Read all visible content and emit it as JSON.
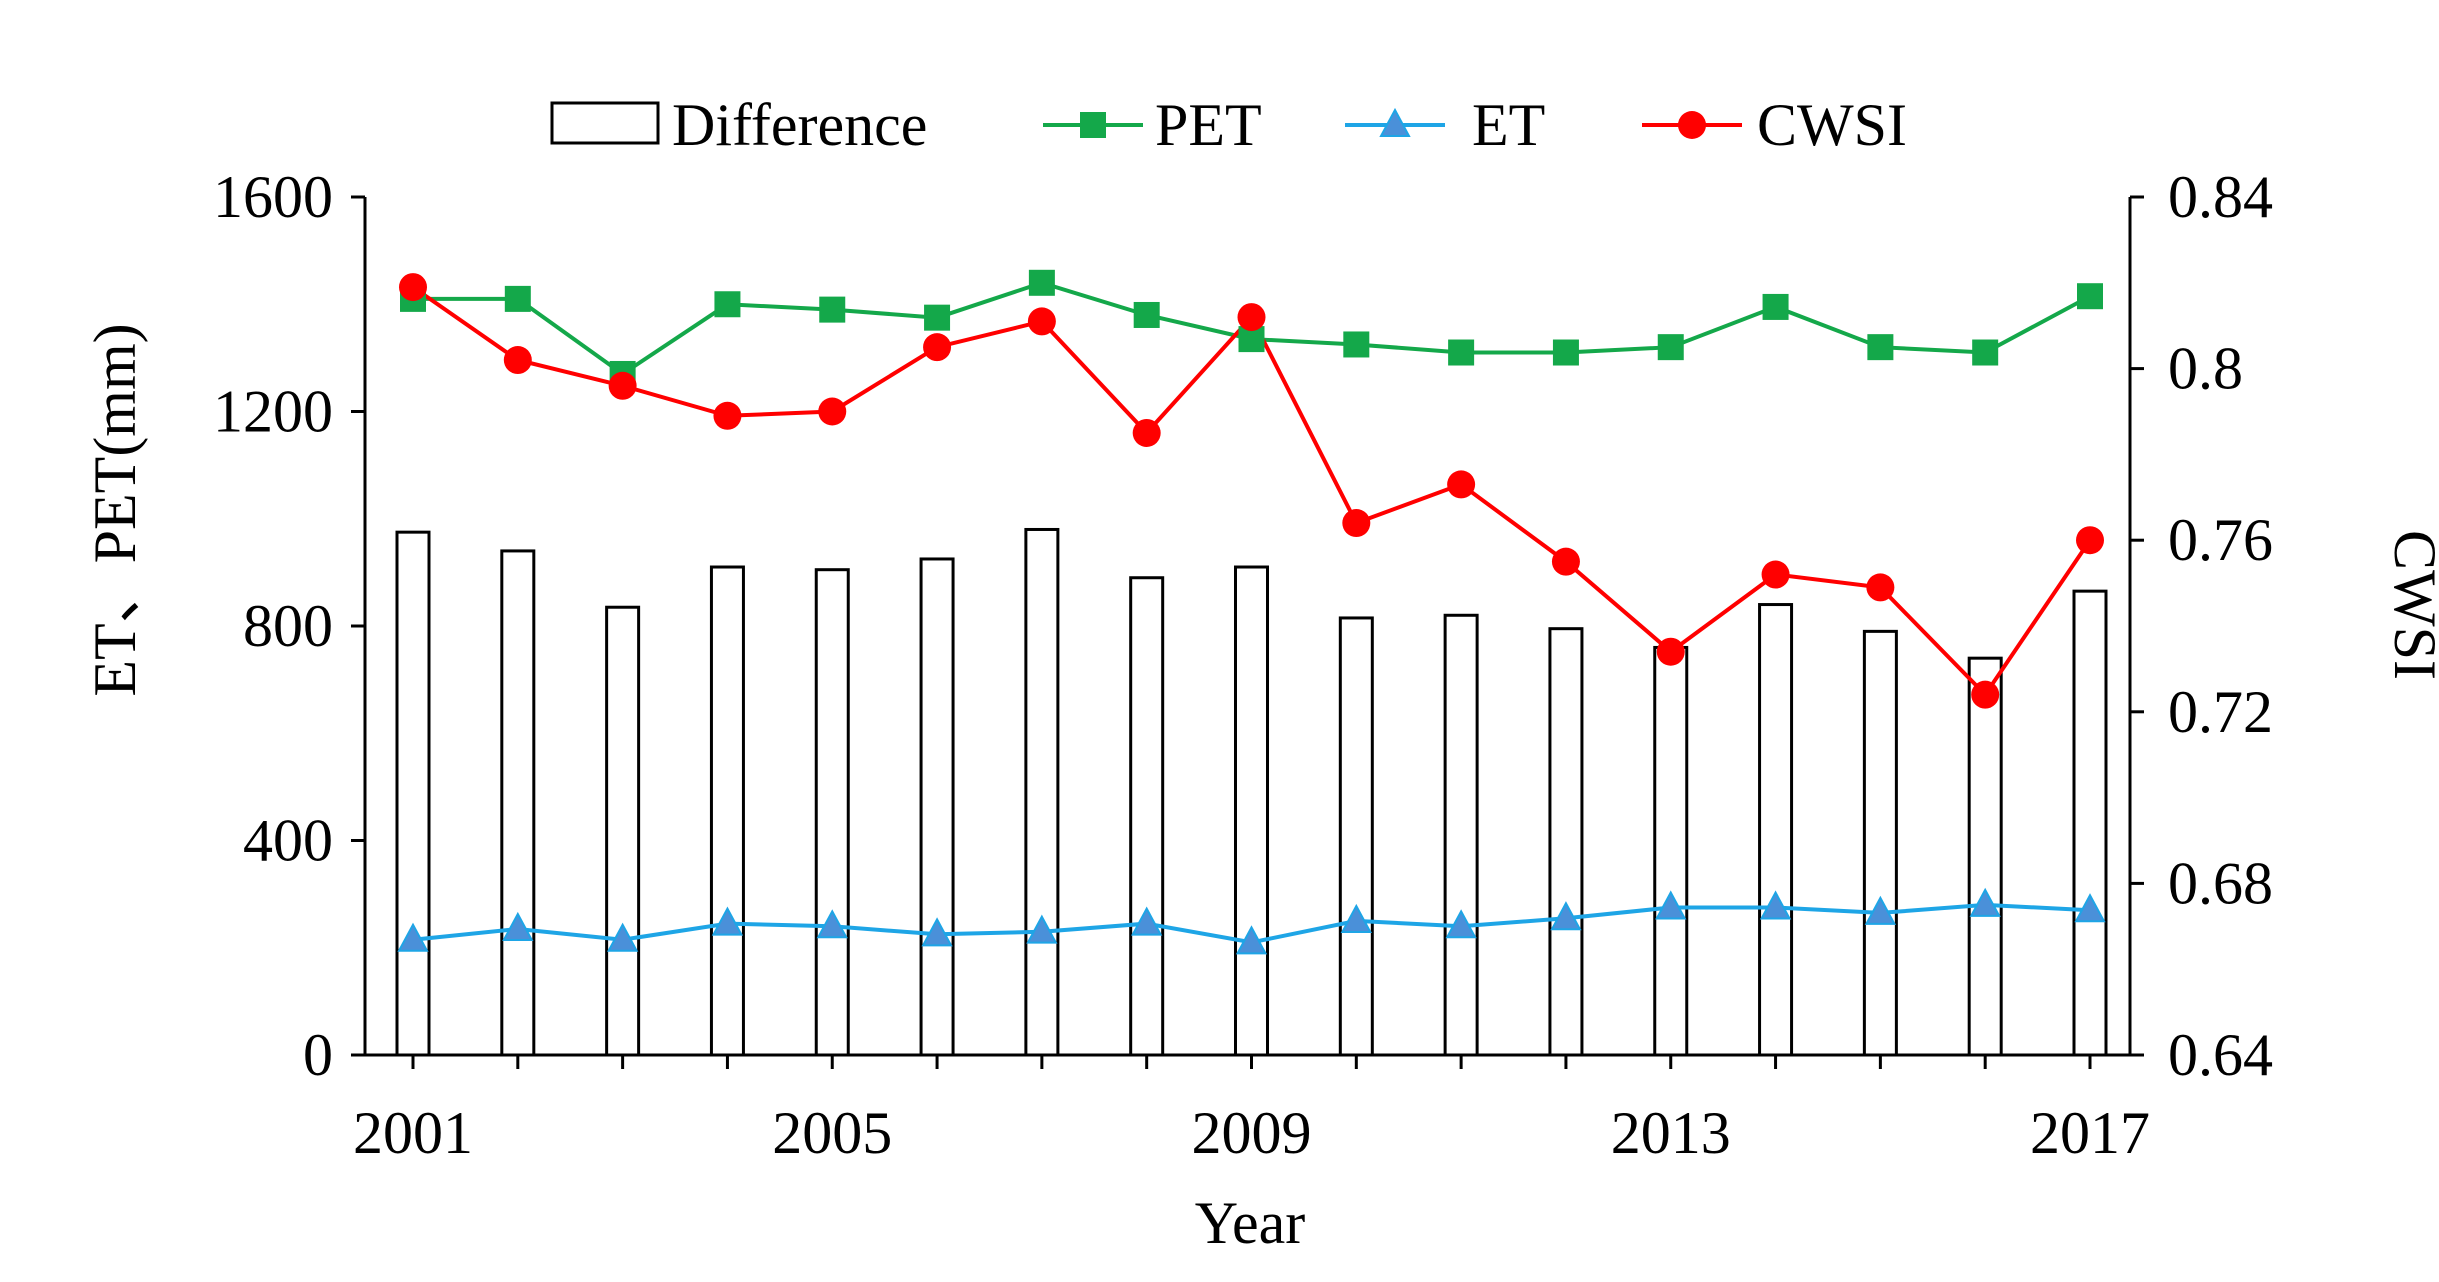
{
  "chart_data": {
    "type": "bar+line",
    "x": [
      2001,
      2002,
      2003,
      2004,
      2005,
      2006,
      2007,
      2008,
      2009,
      2010,
      2011,
      2012,
      2013,
      2014,
      2015,
      2016,
      2017
    ],
    "x_tick_labels": [
      "2001",
      "2005",
      "2009",
      "2013",
      "2017"
    ],
    "xlabel": "Year",
    "ylabel_left": "ET、PET(mm)",
    "ylabel_right": "CWSI",
    "ylim_left": [
      0,
      1600
    ],
    "ylim_right": [
      0.64,
      0.84
    ],
    "y_left_ticks": [
      "0",
      "400",
      "800",
      "1200",
      "1600"
    ],
    "y_right_ticks": [
      "0.64",
      "0.68",
      "0.72",
      "0.76",
      "0.8",
      "0.84"
    ],
    "legend_position": "top",
    "series": [
      {
        "name": "Difference",
        "type": "bar",
        "axis": "left",
        "color": "#000000",
        "values": [
          975,
          940,
          835,
          910,
          905,
          925,
          980,
          890,
          910,
          815,
          820,
          795,
          760,
          840,
          790,
          740,
          865
        ]
      },
      {
        "name": "PET",
        "type": "line",
        "axis": "left",
        "color": "#14a84a",
        "marker": "square",
        "values": [
          1410,
          1410,
          1270,
          1400,
          1390,
          1375,
          1440,
          1380,
          1335,
          1325,
          1310,
          1310,
          1320,
          1395,
          1320,
          1310,
          1415
        ]
      },
      {
        "name": "ET",
        "type": "line",
        "axis": "left",
        "color": "#1ea5e6",
        "marker": "triangle",
        "values": [
          215,
          235,
          215,
          245,
          240,
          225,
          230,
          245,
          210,
          250,
          240,
          255,
          275,
          275,
          265,
          280,
          270
        ]
      },
      {
        "name": "CWSI",
        "type": "line",
        "axis": "right",
        "color": "#ff0000",
        "marker": "circle",
        "values": [
          0.819,
          0.802,
          0.796,
          0.789,
          0.79,
          0.805,
          0.811,
          0.785,
          0.812,
          0.764,
          0.773,
          0.755,
          0.734,
          0.752,
          0.749,
          0.724,
          0.76
        ]
      }
    ]
  }
}
